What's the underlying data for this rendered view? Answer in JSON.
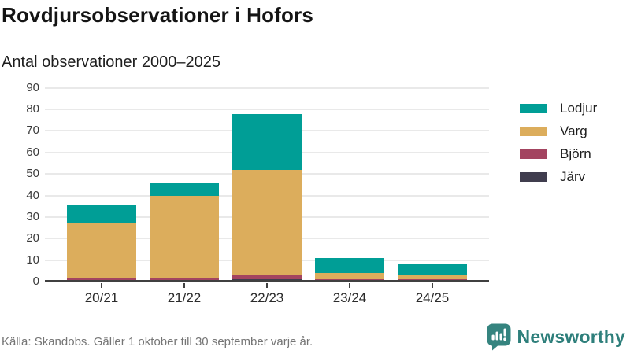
{
  "header": {
    "title": "Rovdjursobservationer i Hofors",
    "subtitle": "Antal observationer 2000–2025"
  },
  "chart_data": {
    "type": "bar",
    "stacked": true,
    "title": "Rovdjursobservationer i Hofors",
    "subtitle": "Antal observationer 2000–2025",
    "categories": [
      "20/21",
      "21/22",
      "22/23",
      "23/24",
      "24/25"
    ],
    "series": [
      {
        "name": "Järv",
        "color": "#403D4E",
        "values": [
          0,
          0,
          1,
          0,
          0
        ]
      },
      {
        "name": "Björn",
        "color": "#A34460",
        "values": [
          2,
          2,
          2,
          1,
          1
        ]
      },
      {
        "name": "Varg",
        "color": "#DCAD5C",
        "values": [
          25,
          38,
          49,
          3,
          2
        ]
      },
      {
        "name": "Lodjur",
        "color": "#009E96",
        "values": [
          9,
          6,
          26,
          7,
          5
        ]
      }
    ],
    "totals": [
      36,
      46,
      78,
      11,
      8
    ],
    "ylim": [
      0,
      90
    ],
    "yticks": [
      0,
      10,
      20,
      30,
      40,
      50,
      60,
      70,
      80,
      90
    ],
    "xlabel": "",
    "ylabel": "",
    "grid": true,
    "legend_position": "right",
    "legend_order": [
      "Lodjur",
      "Varg",
      "Björn",
      "Järv"
    ]
  },
  "footer": {
    "source": "Källa: Skandobs. Gäller 1 oktober till 30 september varje år.",
    "brand": "Newsworthy"
  },
  "colors": {
    "brand_teal": "#2E7F7B",
    "grid": "#E9E9E9",
    "axis": "#404040"
  }
}
